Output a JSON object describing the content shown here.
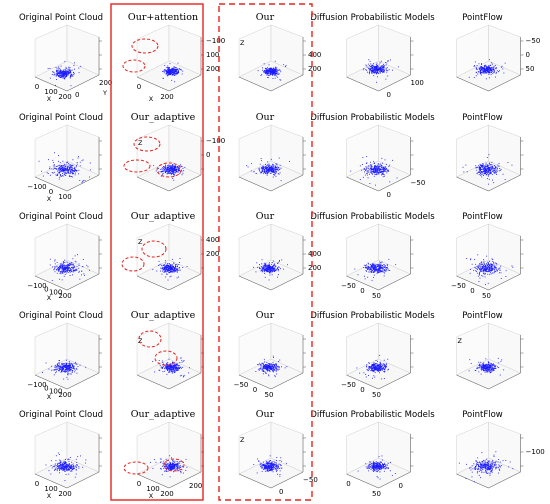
{
  "columns": [
    {
      "key": "original",
      "serif": false
    },
    {
      "key": "ours_variant",
      "serif": true
    },
    {
      "key": "ours",
      "serif": true
    },
    {
      "key": "diffusion",
      "serif": false
    },
    {
      "key": "pointflow",
      "serif": false
    }
  ],
  "rows": [
    {
      "titles": [
        "Original Point Cloud",
        "Our+attention",
        "Our",
        "Diffusion Probabilistic Models",
        "PointFlow"
      ],
      "panels": [
        {
          "vticks": [
            "",
            "",
            ""
          ],
          "xticks": [
            "0",
            "100",
            "200"
          ],
          "yticks": [
            "0",
            "200"
          ],
          "zletter": "",
          "xname": "X",
          "yname": "Y",
          "spread": 1.0,
          "seed": 11,
          "cx": -2,
          "cy": 4
        },
        {
          "vticks": [
            "200",
            "100",
            "−100"
          ],
          "xticks": [
            "0",
            "200"
          ],
          "yticks": [],
          "zletter": "",
          "xname": "X",
          "yname": "",
          "spread": 0.8,
          "seed": 12,
          "cx": 4,
          "cy": 2
        },
        {
          "vticks": [
            "200",
            "400",
            ""
          ],
          "xticks": [
            "",
            ""
          ],
          "yticks": [],
          "zletter": "Z",
          "xname": "",
          "yname": "",
          "spread": 0.8,
          "seed": 13,
          "cx": 2,
          "cy": 2
        },
        {
          "vticks": [
            "",
            "",
            ""
          ],
          "xticks": [],
          "yticks": [
            "0",
            "100"
          ],
          "zletter": "",
          "xname": "",
          "yname": "",
          "spread": 1.0,
          "seed": 14,
          "cx": 0,
          "cy": 0
        },
        {
          "vticks": [
            "50",
            "0",
            "−50"
          ],
          "xticks": [],
          "yticks": [],
          "zletter": "",
          "xname": "",
          "yname": "",
          "spread": 1.0,
          "seed": 15,
          "cx": 0,
          "cy": 0
        }
      ]
    },
    {
      "titles": [
        "Original Point Cloud",
        "Our_adaptive",
        "Our",
        "Diffusion Probabilistic Models",
        "PointFlow"
      ],
      "panels": [
        {
          "vticks": [
            "",
            "",
            ""
          ],
          "xticks": [
            "−100",
            "0",
            "100"
          ],
          "yticks": [],
          "zletter": "",
          "xname": "X",
          "yname": "",
          "spread": 1.4,
          "seed": 21,
          "cx": 0,
          "cy": 0
        },
        {
          "vticks": [
            "",
            "0",
            "−100"
          ],
          "xticks": [],
          "yticks": [],
          "zletter": "Z",
          "xname": "",
          "yname": "",
          "spread": 1.1,
          "seed": 22,
          "cx": 4,
          "cy": 0
        },
        {
          "vticks": [
            "",
            "",
            ""
          ],
          "xticks": [],
          "yticks": [],
          "zletter": "",
          "xname": "",
          "yname": "",
          "spread": 1.1,
          "seed": 23,
          "cx": 0,
          "cy": 0
        },
        {
          "vticks": [
            "",
            "",
            ""
          ],
          "xticks": [],
          "yticks": [
            "0",
            "−50"
          ],
          "zletter": "",
          "xname": "",
          "yname": "",
          "spread": 1.2,
          "seed": 24,
          "cx": 0,
          "cy": 0
        },
        {
          "vticks": [
            "",
            "",
            ""
          ],
          "xticks": [],
          "yticks": [],
          "zletter": "",
          "xname": "",
          "yname": "",
          "spread": 1.2,
          "seed": 25,
          "cx": 0,
          "cy": 0
        }
      ]
    },
    {
      "titles": [
        "Original Point Cloud",
        "Our_adaptive",
        "Our",
        "Diffusion Probabilistic Models",
        "PointFlow"
      ],
      "panels": [
        {
          "vticks": [
            "",
            "",
            ""
          ],
          "xticks": [
            "−100",
            "0",
            "100",
            "200"
          ],
          "yticks": [],
          "zletter": "",
          "xname": "X",
          "yname": "",
          "spread": 1.3,
          "seed": 31,
          "cx": 0,
          "cy": 0
        },
        {
          "vticks": [
            "",
            "200",
            "400"
          ],
          "xticks": [],
          "yticks": [],
          "zletter": "Z",
          "xname": "",
          "yname": "",
          "spread": 0.9,
          "seed": 32,
          "cx": 3,
          "cy": 0
        },
        {
          "vticks": [
            "200",
            "400",
            ""
          ],
          "xticks": [],
          "yticks": [],
          "zletter": "",
          "xname": "",
          "yname": "",
          "spread": 0.9,
          "seed": 33,
          "cx": 0,
          "cy": 0
        },
        {
          "vticks": [
            "",
            "",
            ""
          ],
          "xticks": [
            "−50",
            "0",
            "50"
          ],
          "yticks": [],
          "zletter": "",
          "xname": "",
          "yname": "",
          "spread": 1.1,
          "seed": 34,
          "cx": 0,
          "cy": 0
        },
        {
          "vticks": [
            "",
            "",
            ""
          ],
          "xticks": [
            "−50",
            "0",
            "50"
          ],
          "yticks": [],
          "zletter": "",
          "xname": "",
          "yname": "",
          "spread": 1.3,
          "seed": 35,
          "cx": 0,
          "cy": 0
        }
      ]
    },
    {
      "titles": [
        "Original Point Cloud",
        "Our_adaptive",
        "Our",
        "Diffusion Probabilistic Models",
        "PointFlow"
      ],
      "panels": [
        {
          "vticks": [
            "",
            "",
            ""
          ],
          "xticks": [
            "−100",
            "0",
            "100",
            "200"
          ],
          "yticks": [],
          "zletter": "",
          "xname": "X",
          "yname": "",
          "spread": 1.2,
          "seed": 41,
          "cx": 0,
          "cy": 0
        },
        {
          "vticks": [
            "",
            "",
            ""
          ],
          "xticks": [],
          "yticks": [],
          "zletter": "Z",
          "xname": "",
          "yname": "",
          "spread": 1.0,
          "seed": 42,
          "cx": 4,
          "cy": 0
        },
        {
          "vticks": [
            "",
            "",
            ""
          ],
          "xticks": [
            "−50",
            "0",
            "50"
          ],
          "yticks": [],
          "zletter": "",
          "xname": "",
          "yname": "",
          "spread": 0.9,
          "seed": 43,
          "cx": 0,
          "cy": 0
        },
        {
          "vticks": [
            "",
            "",
            ""
          ],
          "xticks": [
            "−50",
            "0",
            "50"
          ],
          "yticks": [],
          "zletter": "",
          "xname": "",
          "yname": "",
          "spread": 1.0,
          "seed": 44,
          "cx": 0,
          "cy": 0
        },
        {
          "vticks": [
            "",
            "",
            ""
          ],
          "xticks": [],
          "yticks": [],
          "zletter": "Z",
          "xname": "",
          "yname": "",
          "spread": 1.0,
          "seed": 45,
          "cx": 0,
          "cy": 0
        }
      ]
    },
    {
      "titles": [
        "Original Point Cloud",
        "Our_adaptive",
        "Our",
        "Diffusion Probabilistic Models",
        "PointFlow"
      ],
      "panels": [
        {
          "vticks": [
            "",
            "",
            ""
          ],
          "xticks": [
            "0",
            "100",
            "200"
          ],
          "yticks": [],
          "zletter": "",
          "xname": "X",
          "yname": "",
          "spread": 1.1,
          "seed": 51,
          "cx": 0,
          "cy": 0
        },
        {
          "vticks": [
            "",
            "",
            ""
          ],
          "xticks": [
            "0",
            "100",
            "200"
          ],
          "yticks": [
            "200"
          ],
          "zletter": "",
          "xname": "X",
          "yname": "",
          "spread": 1.0,
          "seed": 52,
          "cx": 4,
          "cy": 0
        },
        {
          "vticks": [
            "",
            "",
            ""
          ],
          "xticks": [],
          "yticks": [
            "0",
            "−50"
          ],
          "zletter": "Z",
          "xname": "",
          "yname": "",
          "spread": 1.0,
          "seed": 53,
          "cx": 0,
          "cy": 0
        },
        {
          "vticks": [
            "",
            "",
            ""
          ],
          "xticks": [
            "0",
            "50"
          ],
          "yticks": [
            "0"
          ],
          "zletter": "",
          "xname": "",
          "yname": "",
          "spread": 1.0,
          "seed": 54,
          "cx": 0,
          "cy": 0
        },
        {
          "vticks": [
            "",
            "−100",
            ""
          ],
          "xticks": [],
          "yticks": [],
          "zletter": "",
          "xname": "",
          "yname": "",
          "spread": 1.4,
          "seed": 55,
          "cx": 0,
          "cy": 0
        }
      ]
    }
  ],
  "highlights": {
    "solid_box_color": "#e8231e",
    "dashed_box_color": "#e8231e",
    "ellipses": [
      {
        "row": 0,
        "col": 1,
        "cx": 33,
        "cy": 38,
        "rx": 13,
        "ry": 7
      },
      {
        "row": 0,
        "col": 1,
        "cx": 22,
        "cy": 58,
        "rx": 11,
        "ry": 6
      },
      {
        "row": 1,
        "col": 1,
        "cx": 35,
        "cy": 36,
        "rx": 13,
        "ry": 7
      },
      {
        "row": 1,
        "col": 1,
        "cx": 25,
        "cy": 58,
        "rx": 13,
        "ry": 6
      },
      {
        "row": 1,
        "col": 1,
        "cx": 57,
        "cy": 62,
        "rx": 12,
        "ry": 7
      },
      {
        "row": 2,
        "col": 1,
        "cx": 42,
        "cy": 42,
        "rx": 12,
        "ry": 8
      },
      {
        "row": 2,
        "col": 1,
        "cx": 21,
        "cy": 57,
        "rx": 11,
        "ry": 7
      },
      {
        "row": 3,
        "col": 1,
        "cx": 38,
        "cy": 33,
        "rx": 11,
        "ry": 8
      },
      {
        "row": 3,
        "col": 1,
        "cx": 54,
        "cy": 52,
        "rx": 11,
        "ry": 7
      },
      {
        "row": 4,
        "col": 1,
        "cx": 24,
        "cy": 63,
        "rx": 12,
        "ry": 6
      },
      {
        "row": 4,
        "col": 1,
        "cx": 62,
        "cy": 60,
        "rx": 10,
        "ry": 6
      }
    ]
  },
  "colors": {
    "points": "#1a1aff",
    "axis": "#555555",
    "pane": "#ffffff"
  }
}
